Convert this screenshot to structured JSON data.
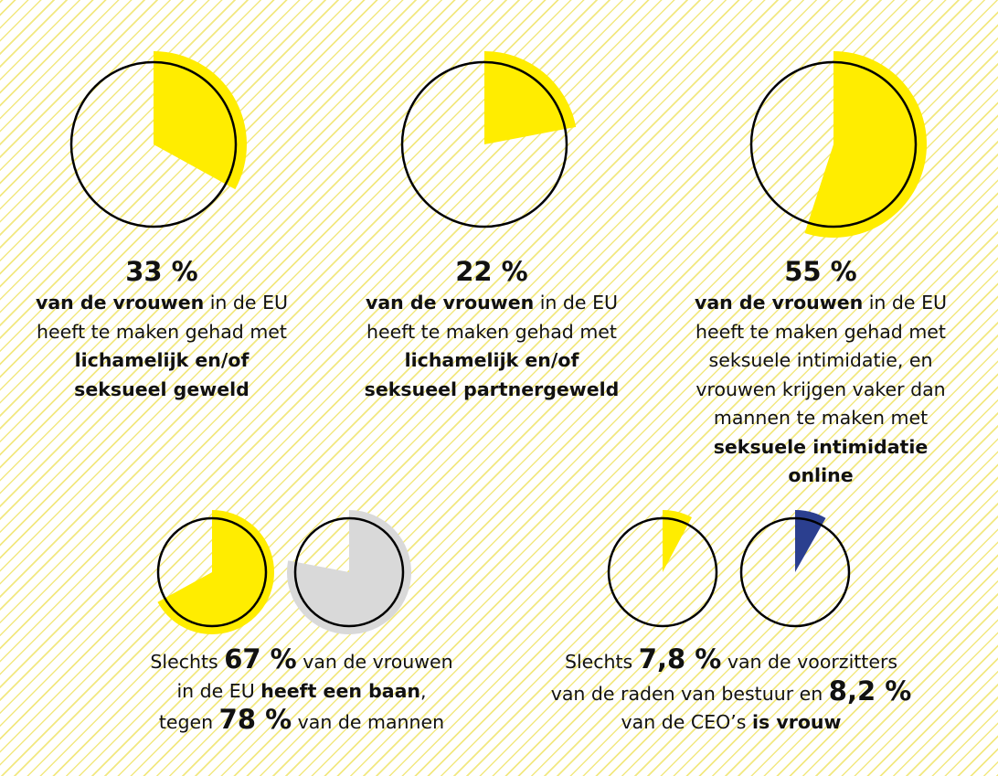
{
  "chart_data": [
    {
      "type": "pie",
      "values": [
        33
      ],
      "color": "#ffed00"
    },
    {
      "type": "pie",
      "values": [
        22
      ],
      "color": "#ffed00"
    },
    {
      "type": "pie",
      "values": [
        55
      ],
      "color": "#ffed00"
    },
    {
      "type": "pie",
      "values": [
        67
      ],
      "color": "#ffed00"
    },
    {
      "type": "pie",
      "values": [
        78
      ],
      "color": "#d9d9d9"
    },
    {
      "type": "pie",
      "values": [
        7.8
      ],
      "color": "#ffed00"
    },
    {
      "type": "pie",
      "values": [
        8.2
      ],
      "color": "#2b3f8f"
    }
  ],
  "captions": {
    "c1": {
      "pct": "33 %",
      "a": "van de vrouwen",
      "b": " in de EU",
      "c": "heeft te maken gehad met",
      "d": "lichamelijk en/of",
      "e": "seksueel geweld"
    },
    "c2": {
      "pct": "22 %",
      "a": "van de vrouwen",
      "b": " in de EU",
      "c": "heeft te maken gehad met",
      "d": "lichamelijk en/of",
      "e": "seksueel partnergeweld"
    },
    "c3": {
      "pct": "55 %",
      "a": "van de vrouwen",
      "b": " in de EU",
      "c": "heeft te maken gehad met",
      "d": "seksuele intimidatie, en",
      "e": "vrouwen krijgen vaker dan",
      "f": "mannen te maken met",
      "g": "seksuele intimidatie",
      "h": "online"
    },
    "c4": {
      "a": "Slechts ",
      "b": "67 %",
      "c": " van de vrouwen",
      "d": "in de EU ",
      "e": "heeft een baan",
      "f": ",",
      "g": "tegen ",
      "h": "78 %",
      "i": " van de mannen"
    },
    "c5": {
      "a": "Slechts ",
      "b": "7,8 %",
      "c": " van de voorzitters",
      "d": "van de raden van bestuur en ",
      "e": "8,2 %",
      "f": "van de CEO’s ",
      "g": "is vrouw"
    }
  },
  "colors": {
    "yellow": "#ffed00",
    "grey": "#d9d9d9",
    "blue": "#2b3f8f",
    "outline": "#000000"
  }
}
